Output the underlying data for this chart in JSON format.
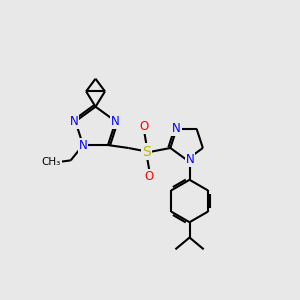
{
  "bg_color": "#e8e8e8",
  "bond_color": "#000000",
  "bond_width": 1.5,
  "atom_colors": {
    "N": "#0000ff",
    "S": "#b8b800",
    "O": "#ff0000",
    "C": "#000000"
  },
  "font_size_N": 8.5,
  "font_size_S": 9,
  "font_size_O": 8.5,
  "font_size_methyl": 7.5,
  "xlim": [
    0,
    10
  ],
  "ylim": [
    0,
    10
  ]
}
